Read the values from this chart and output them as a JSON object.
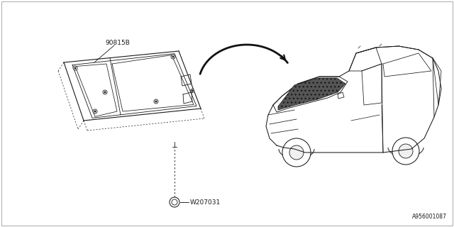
{
  "background_color": "#ffffff",
  "border_color": "#cccccc",
  "diagram_number": "A956001087",
  "part_label_1": "90815B",
  "part_label_2": "W207031",
  "line_color": "#1a1a1a",
  "text_color": "#1a1a1a",
  "font_size_label": 6.5,
  "font_size_diagram": 5.5
}
